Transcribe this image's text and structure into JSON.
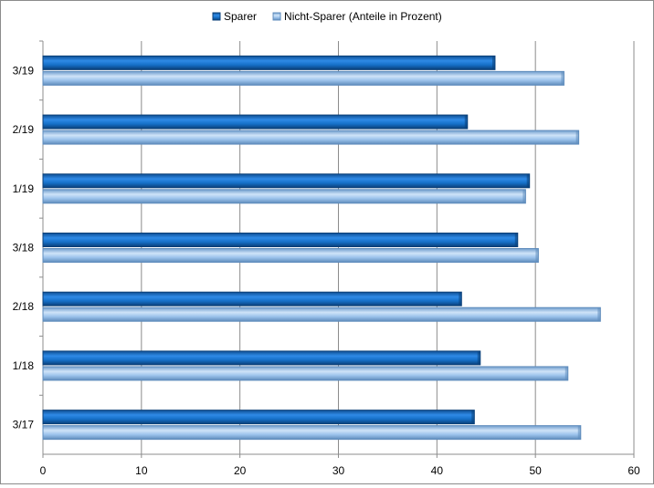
{
  "chart_data": {
    "type": "bar",
    "orientation": "horizontal",
    "categories": [
      "3/17",
      "1/18",
      "2/18",
      "3/18",
      "1/19",
      "2/19",
      "3/19"
    ],
    "series": [
      {
        "name": "Sparer",
        "values": [
          43.8,
          44.4,
          42.5,
          48.2,
          49.4,
          43.1,
          45.9
        ],
        "color": "#1670c8"
      },
      {
        "name": "Nicht-Sparer (Anteile in Prozent)",
        "values": [
          54.6,
          53.3,
          56.6,
          50.3,
          49.0,
          54.4,
          52.9
        ],
        "color": "#9cc3ec"
      }
    ],
    "xlim": [
      0,
      60
    ],
    "xticks": [
      "0",
      "10",
      "20",
      "30",
      "40",
      "50",
      "60"
    ],
    "grid": true,
    "legend_position": "top",
    "title": "",
    "xlabel": "",
    "ylabel": ""
  }
}
